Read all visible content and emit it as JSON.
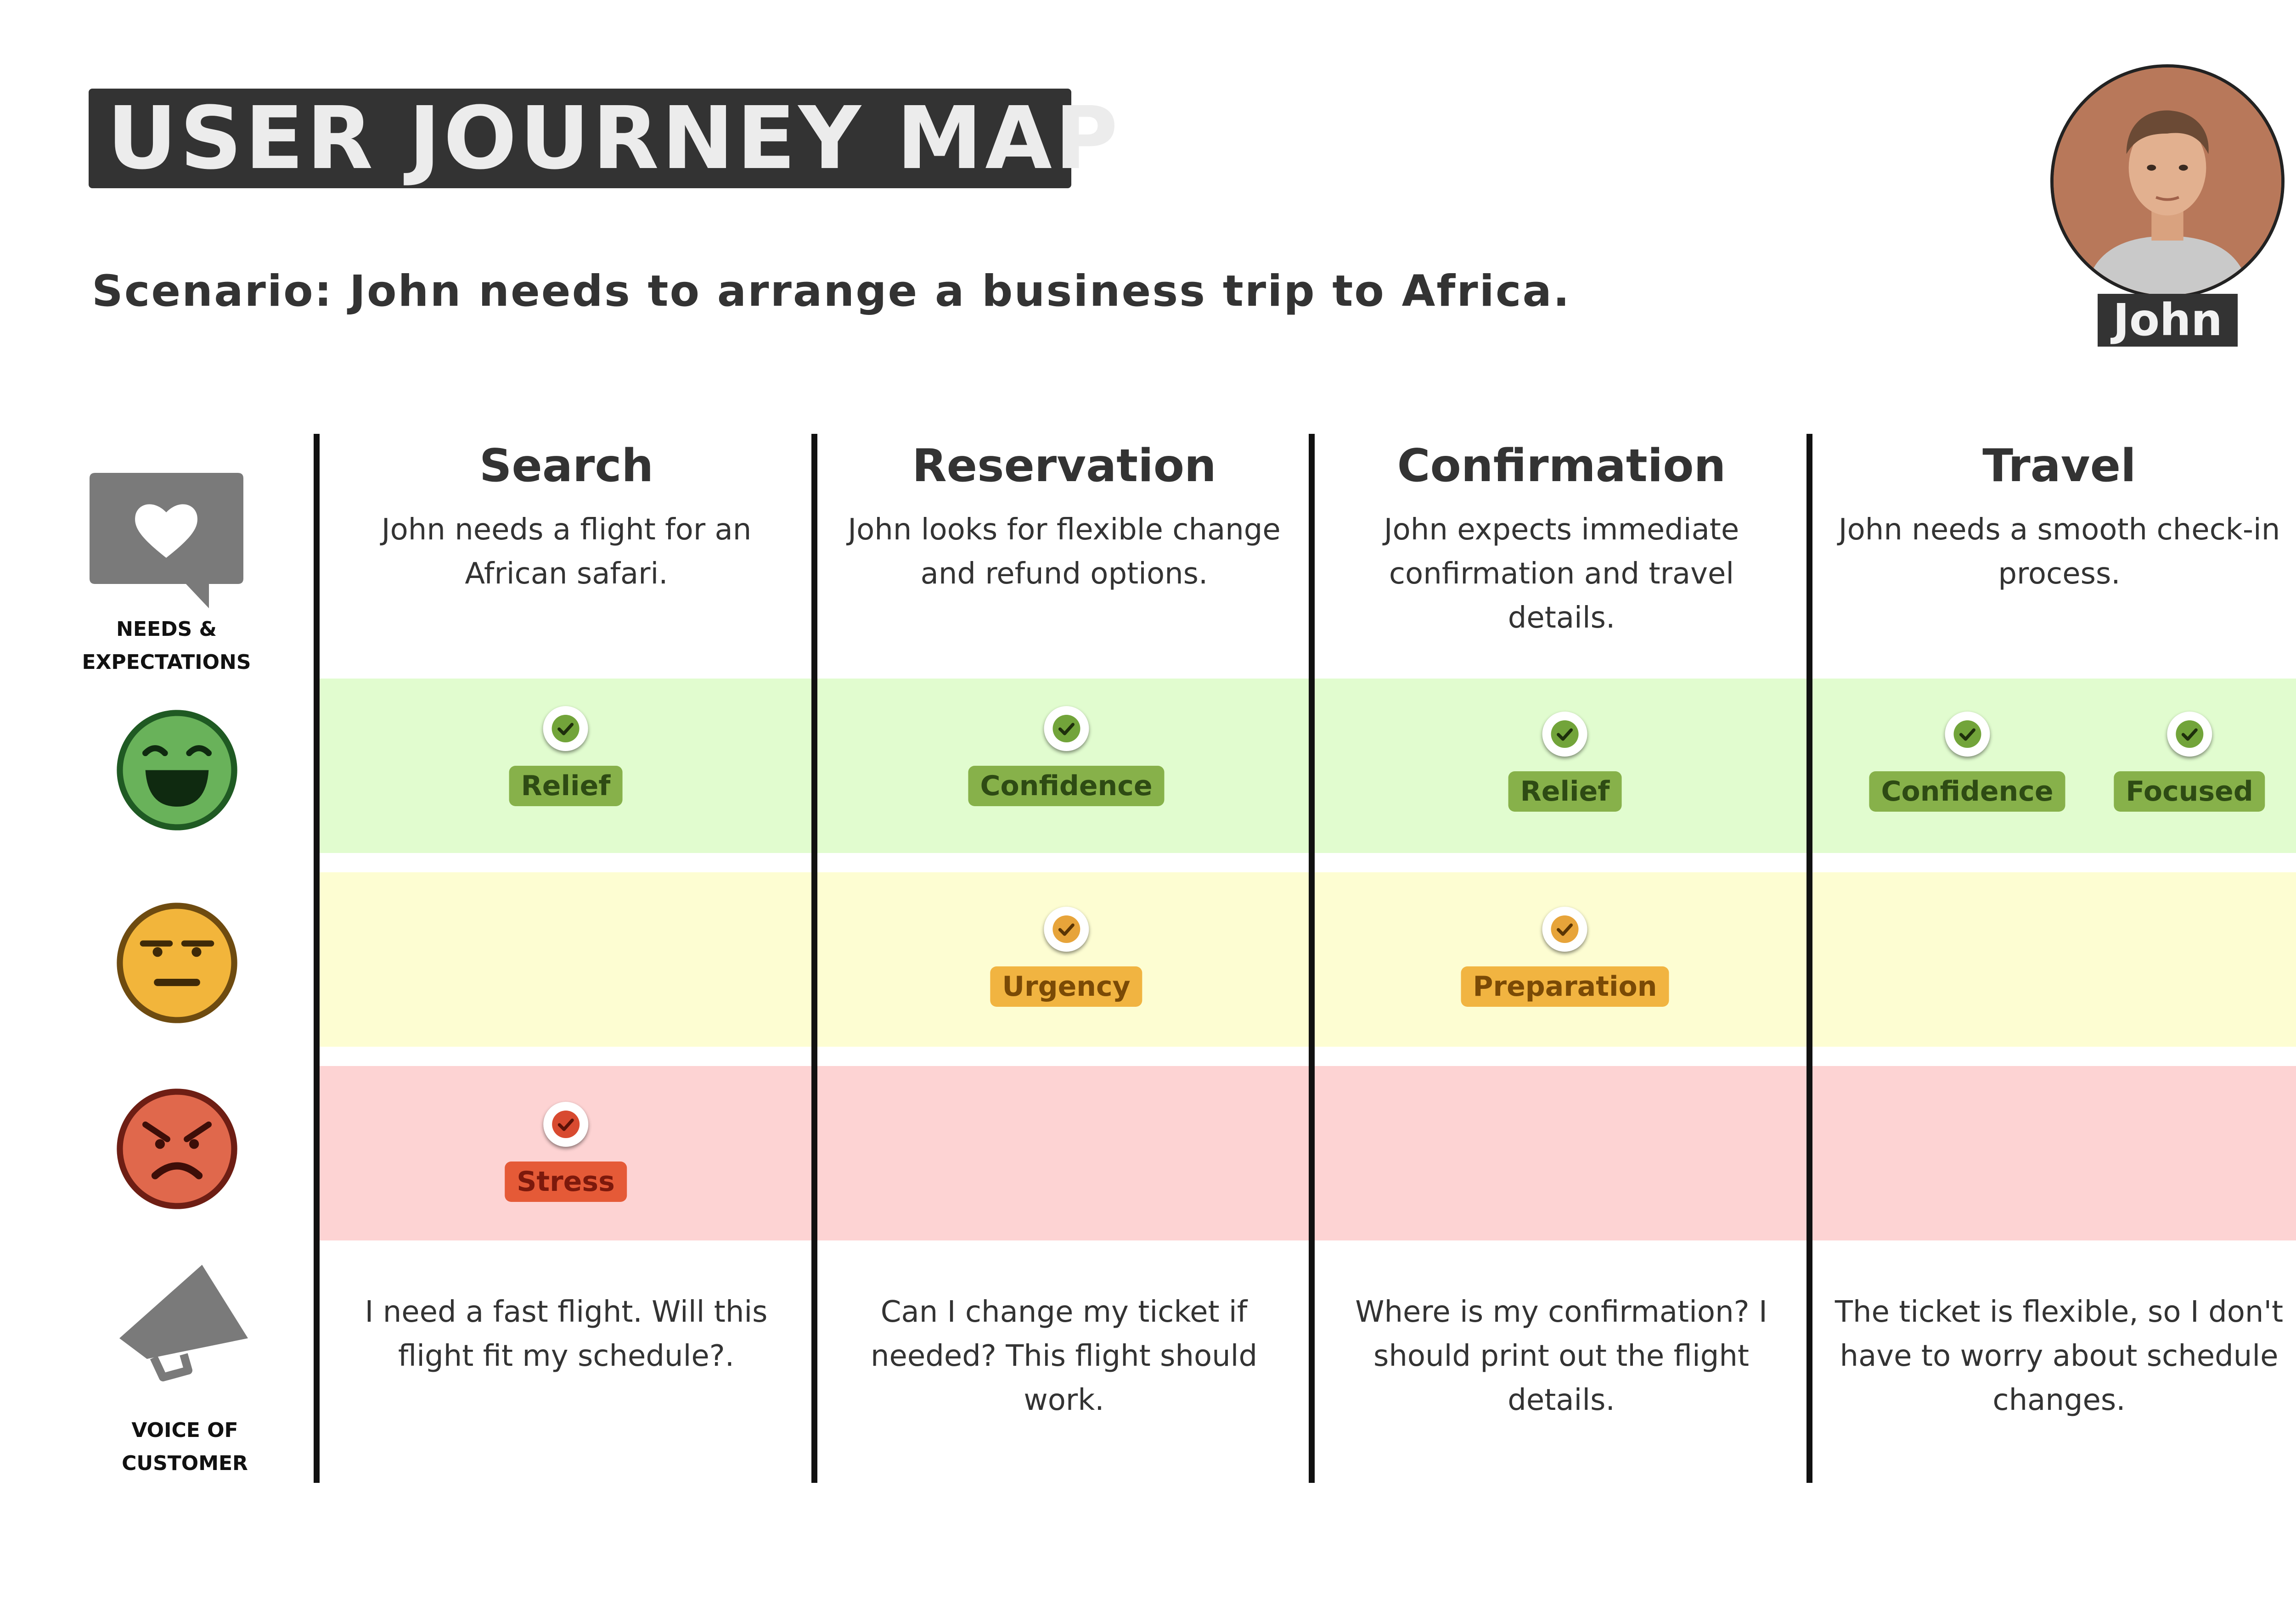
{
  "title": "USER JOURNEY MAP",
  "scenario": "Scenario: John needs to arrange a business trip to Africa.",
  "persona": {
    "name": "John"
  },
  "row_labels": {
    "needs_line1": "NEEDS &",
    "needs_line2": "EXPECTATIONS",
    "voice_line1": "VOICE OF",
    "voice_line2": "CUSTOMER"
  },
  "icons": {
    "needs": "heart-speech-bubble-icon",
    "positive": "laughing-face-icon",
    "neutral": "neutral-face-icon",
    "negative": "angry-face-icon",
    "voice": "megaphone-icon",
    "marker": "check-icon"
  },
  "colors": {
    "positive_band": "#e1fccf",
    "neutral_band": "#fdfdd2",
    "negative_band": "#fdd3d3",
    "positive_tag": "#87b14a",
    "neutral_tag": "#f1b441",
    "negative_tag": "#e55a37"
  },
  "stages": [
    {
      "title": "Search",
      "need": "John needs a  flight for an African safari.",
      "emotions": {
        "positive": [
          "Relief"
        ],
        "neutral": [],
        "negative": [
          "Stress"
        ]
      },
      "voice": "I need a fast flight. Will this flight fit my schedule?."
    },
    {
      "title": "Reservation",
      "need": "John looks for flexible change and refund options.",
      "emotions": {
        "positive": [
          "Confidence"
        ],
        "neutral": [
          "Urgency"
        ],
        "negative": []
      },
      "voice": "Can I change my ticket if needed? This flight should work."
    },
    {
      "title": "Confirmation",
      "need": "John expects immediate confirmation and travel details.",
      "emotions": {
        "positive": [
          "Relief"
        ],
        "neutral": [
          "Preparation"
        ],
        "negative": []
      },
      "voice": "Where is my confirmation? I should print out the flight details."
    },
    {
      "title": "Travel",
      "need": "John needs a smooth check-in process.",
      "emotions": {
        "positive": [
          "Confidence",
          "Focused"
        ],
        "neutral": [],
        "negative": []
      },
      "voice": "The ticket is flexible, so I don't have to worry about schedule changes."
    }
  ]
}
